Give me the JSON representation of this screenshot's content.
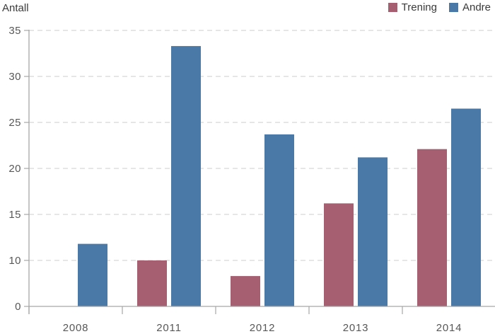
{
  "chart_data": {
    "type": "bar",
    "title": "",
    "xlabel": "",
    "ylabel": "Antall",
    "categories": [
      "2008",
      "2011",
      "2012",
      "2013",
      "2014"
    ],
    "series": [
      {
        "name": "Trening",
        "color": "#a65f70",
        "values": [
          0,
          10,
          6.6,
          16.2,
          22.1
        ]
      },
      {
        "name": "Andre",
        "color": "#4a79a8",
        "values": [
          11.8,
          33.3,
          23.7,
          21.2,
          26.5
        ]
      }
    ],
    "y_ticks": [
      0,
      10,
      15,
      20,
      25,
      30,
      35
    ],
    "ylim": [
      0,
      35
    ],
    "grid": "horizontal-dashed",
    "legend_position": "top-right"
  },
  "legend": [
    {
      "label": "Trening",
      "color": "#a65f70"
    },
    {
      "label": "Andre",
      "color": "#4a79a8"
    }
  ],
  "colors": {
    "grid": "#d7d7d7",
    "axis": "#a6a6a6",
    "tick_text": "#575757",
    "title_text": "#3a3a3a",
    "background": "#ffffff"
  }
}
